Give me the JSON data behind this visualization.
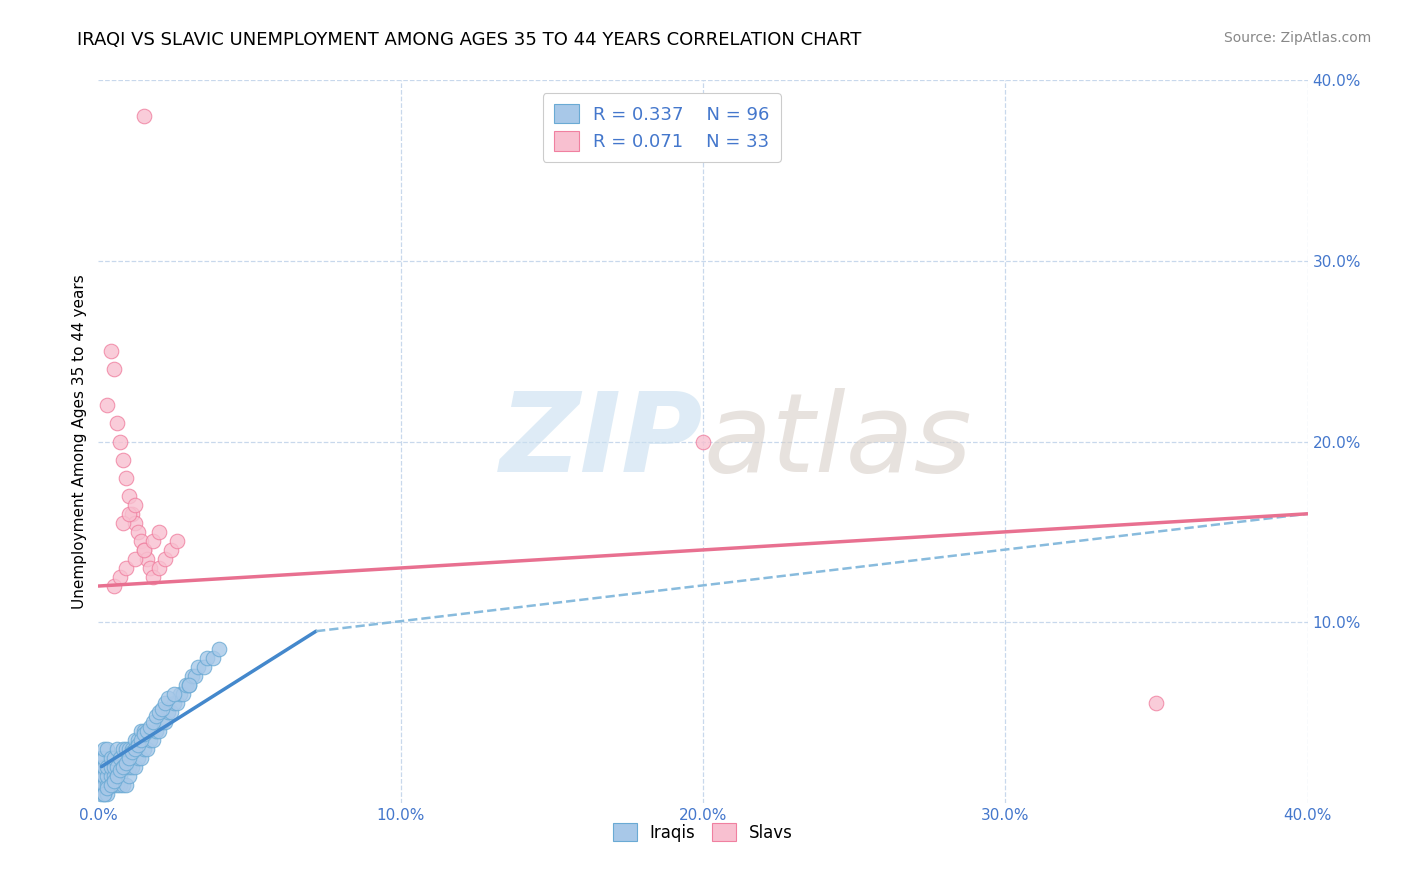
{
  "title": "IRAQI VS SLAVIC UNEMPLOYMENT AMONG AGES 35 TO 44 YEARS CORRELATION CHART",
  "source": "Source: ZipAtlas.com",
  "ylabel": "Unemployment Among Ages 35 to 44 years",
  "xlim": [
    0.0,
    0.4
  ],
  "ylim": [
    0.0,
    0.4
  ],
  "iraqis_R": 0.337,
  "iraqis_N": 96,
  "slavs_R": 0.071,
  "slavs_N": 33,
  "blue_color": "#a8c8e8",
  "blue_edge": "#6aaad4",
  "pink_color": "#f8c0d0",
  "pink_edge": "#f080a0",
  "blue_line_color": "#4488cc",
  "pink_line_color": "#e87090",
  "dashed_line_color": "#88bbdd",
  "legend_text_color": "#4477cc",
  "watermark_color_zip": "#c8dff0",
  "watermark_color_atlas": "#d8cfc8",
  "background_color": "#ffffff",
  "grid_color": "#c8d8ec",
  "title_fontsize": 13,
  "iraqis_x_data": [
    0.001,
    0.001,
    0.001,
    0.001,
    0.001,
    0.002,
    0.002,
    0.002,
    0.002,
    0.002,
    0.002,
    0.003,
    0.003,
    0.003,
    0.003,
    0.003,
    0.004,
    0.004,
    0.004,
    0.004,
    0.005,
    0.005,
    0.005,
    0.005,
    0.006,
    0.006,
    0.006,
    0.006,
    0.007,
    0.007,
    0.007,
    0.008,
    0.008,
    0.008,
    0.009,
    0.009,
    0.009,
    0.01,
    0.01,
    0.01,
    0.011,
    0.011,
    0.012,
    0.012,
    0.013,
    0.013,
    0.014,
    0.014,
    0.015,
    0.015,
    0.016,
    0.017,
    0.018,
    0.019,
    0.02,
    0.021,
    0.022,
    0.023,
    0.024,
    0.025,
    0.026,
    0.027,
    0.028,
    0.029,
    0.03,
    0.031,
    0.032,
    0.033,
    0.035,
    0.036,
    0.038,
    0.04,
    0.002,
    0.003,
    0.004,
    0.005,
    0.006,
    0.007,
    0.008,
    0.009,
    0.01,
    0.011,
    0.012,
    0.013,
    0.014,
    0.015,
    0.016,
    0.017,
    0.018,
    0.019,
    0.02,
    0.021,
    0.022,
    0.023,
    0.025,
    0.03
  ],
  "iraqis_y_data": [
    0.005,
    0.01,
    0.015,
    0.02,
    0.025,
    0.005,
    0.01,
    0.015,
    0.02,
    0.025,
    0.03,
    0.005,
    0.01,
    0.015,
    0.02,
    0.03,
    0.01,
    0.015,
    0.02,
    0.025,
    0.01,
    0.015,
    0.02,
    0.025,
    0.01,
    0.015,
    0.02,
    0.03,
    0.01,
    0.015,
    0.025,
    0.01,
    0.02,
    0.03,
    0.01,
    0.02,
    0.03,
    0.015,
    0.02,
    0.03,
    0.02,
    0.03,
    0.02,
    0.035,
    0.025,
    0.035,
    0.025,
    0.04,
    0.03,
    0.04,
    0.03,
    0.035,
    0.035,
    0.04,
    0.04,
    0.045,
    0.045,
    0.05,
    0.05,
    0.055,
    0.055,
    0.06,
    0.06,
    0.065,
    0.065,
    0.07,
    0.07,
    0.075,
    0.075,
    0.08,
    0.08,
    0.085,
    0.005,
    0.008,
    0.01,
    0.012,
    0.015,
    0.018,
    0.02,
    0.022,
    0.025,
    0.028,
    0.03,
    0.032,
    0.035,
    0.038,
    0.04,
    0.042,
    0.045,
    0.048,
    0.05,
    0.052,
    0.055,
    0.058,
    0.06,
    0.065
  ],
  "slavs_x_data": [
    0.003,
    0.004,
    0.005,
    0.006,
    0.007,
    0.008,
    0.009,
    0.01,
    0.011,
    0.012,
    0.013,
    0.014,
    0.015,
    0.016,
    0.017,
    0.018,
    0.02,
    0.022,
    0.024,
    0.026,
    0.005,
    0.007,
    0.009,
    0.012,
    0.015,
    0.018,
    0.02,
    0.008,
    0.01,
    0.012,
    0.35,
    0.2,
    0.015
  ],
  "slavs_y_data": [
    0.22,
    0.25,
    0.24,
    0.21,
    0.2,
    0.19,
    0.18,
    0.17,
    0.16,
    0.155,
    0.15,
    0.145,
    0.14,
    0.135,
    0.13,
    0.125,
    0.13,
    0.135,
    0.14,
    0.145,
    0.12,
    0.125,
    0.13,
    0.135,
    0.14,
    0.145,
    0.15,
    0.155,
    0.16,
    0.165,
    0.055,
    0.2,
    0.38
  ],
  "blue_trendline_x": [
    0.001,
    0.072
  ],
  "blue_trendline_y": [
    0.02,
    0.095
  ],
  "dashed_trendline_x": [
    0.072,
    0.4
  ],
  "dashed_trendline_y": [
    0.095,
    0.16
  ],
  "pink_trendline_x": [
    0.0,
    0.4
  ],
  "pink_trendline_y": [
    0.12,
    0.16
  ]
}
